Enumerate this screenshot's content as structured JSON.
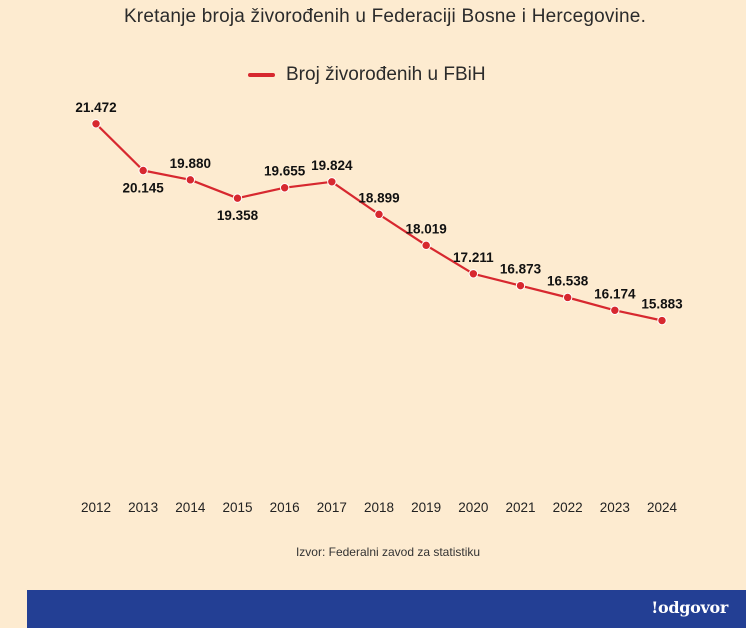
{
  "chart_data": {
    "type": "line",
    "title": "Kretanje broja živorođenih u Federaciji Bosne i Hercegovine.",
    "categories": [
      "2012",
      "2013",
      "2014",
      "2015",
      "2016",
      "2017",
      "2018",
      "2019",
      "2020",
      "2021",
      "2022",
      "2023",
      "2024"
    ],
    "series": [
      {
        "name": "Broj živorođenih u FBiH",
        "values": [
          21472,
          20145,
          19880,
          19358,
          19655,
          19824,
          18899,
          18019,
          17211,
          16873,
          16538,
          16174,
          15883
        ],
        "labels": [
          "21.472",
          "20.145",
          "19.880",
          "19.358",
          "19.655",
          "19.824",
          "18.899",
          "18.019",
          "17.211",
          "16.873",
          "16.538",
          "16.174",
          "15.883"
        ],
        "label_side": [
          "above",
          "below",
          "above",
          "below",
          "above",
          "above",
          "above",
          "above",
          "above",
          "above",
          "above",
          "above",
          "above"
        ]
      }
    ],
    "legend": "top-center",
    "xlabel": "",
    "ylabel": "",
    "ylim": [
      10500,
      23000
    ],
    "grid": false
  },
  "source_note": "Izvor: Federalni zavod za statistiku",
  "brand": "!odgovor",
  "colors": {
    "background": "#fdebd0",
    "line": "#d7282f",
    "footer": "#233f94",
    "text": "#2b2b2b"
  }
}
